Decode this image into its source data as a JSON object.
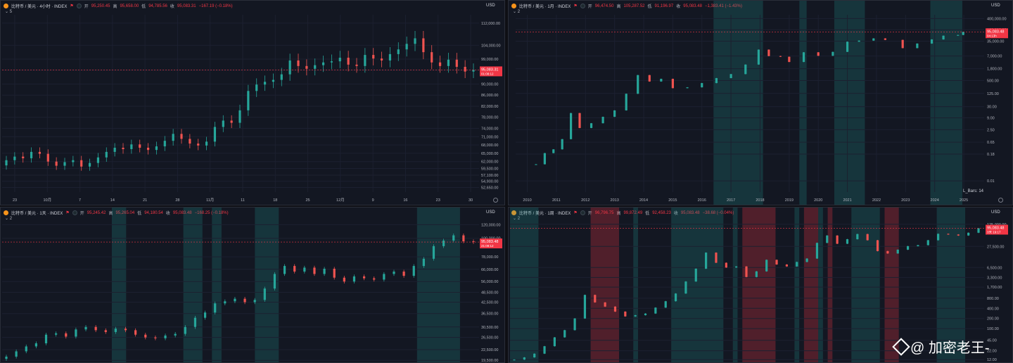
{
  "watermark": {
    "text": "@ 加密老王-"
  },
  "colors": {
    "up": "#26a69a",
    "down": "#ef5350",
    "bg": "#131722",
    "grid": "#1e222d",
    "accent": "#f23645"
  },
  "panes": [
    {
      "id": "tl",
      "title": "比特币 / 美元 · 4小时 · INDEX",
      "open_label": "开",
      "open": "95,250.45",
      "high_label": "高",
      "high": "95,658.00",
      "low_label": "低",
      "low": "94,785.56",
      "close_label": "收",
      "close": "95,083.31",
      "change": "−167.19 (−0.18%)",
      "collapse": "⌄ 5",
      "currency": "USD",
      "price_tag": "95,083.31",
      "price_tag_sub": "01:08:12",
      "chart_data": {
        "type": "candlestick",
        "scale": "linear",
        "x_ticks": [
          "23",
          "10月",
          "7",
          "14",
          "21",
          "28",
          "11月",
          "11",
          "18",
          "25",
          "12月",
          "9",
          "16",
          "23",
          "30"
        ],
        "y_ticks": [
          "112,000.00",
          "104,000.00",
          "99,000.00",
          "95,000.00",
          "90,000.00",
          "86,000.00",
          "82,000.00",
          "78,000.00",
          "74,000.00",
          "71,000.00",
          "68,000.00",
          "65,000.00",
          "62,000.00",
          "59,500.00",
          "57,100.00",
          "54,900.00",
          "52,650.00"
        ],
        "ylim": [
          51000,
          115000
        ],
        "close": [
          62500,
          63800,
          63200,
          65500,
          64800,
          62000,
          60500,
          61800,
          62500,
          60200,
          61500,
          63500,
          65500,
          67000,
          66500,
          68200,
          67000,
          66200,
          67500,
          69500,
          72000,
          70200,
          68500,
          67800,
          69200,
          74500,
          76800,
          76000,
          80500,
          87500,
          89800,
          90800,
          91500,
          93500,
          98500,
          96500,
          95500,
          96800,
          97800,
          98200,
          99500,
          97000,
          96500,
          100500,
          99200,
          98500,
          100800,
          102500,
          104500,
          106500,
          101500,
          97800,
          96500,
          98800,
          96200,
          94500,
          95083
        ]
      },
      "highlights": []
    },
    {
      "id": "tr",
      "title": "比特币 / 美元 · 1月 · INDEX",
      "open_label": "开",
      "open": "96,474.50",
      "high_label": "高",
      "high": "105,287.52",
      "low_label": "低",
      "low": "91,196.97",
      "close_label": "收",
      "close": "95,083.48",
      "change": "−1,383.41 (−1.43%)",
      "collapse": "⌄ 2",
      "currency": "USD",
      "price_tag": "95,083.48",
      "price_tag_sub": "04:13h",
      "annotation": "L_Bars: 14",
      "chart_data": {
        "type": "candlestick",
        "scale": "log",
        "x_ticks": [
          "2010",
          "2011",
          "2012",
          "2013",
          "2014",
          "2015",
          "2016",
          "2017",
          "2018",
          "2019",
          "2020",
          "2021",
          "2022",
          "2023",
          "2024",
          "2025"
        ],
        "y_ticks": [
          "400,000.00",
          "120,000.00",
          "35,000.00",
          "7,000.00",
          "1,800.00",
          "500.00",
          "125.00",
          "30.00",
          "9.00",
          "2.50",
          "0.65",
          "0.18",
          "0.01"
        ],
        "ylim": [
          0.003,
          600000
        ],
        "years": [
          2010.3,
          2010.6,
          2010.9,
          2011.2,
          2011.5,
          2011.8,
          2012.2,
          2012.6,
          2013.0,
          2013.4,
          2013.8,
          2014.2,
          2014.6,
          2015.0,
          2015.5,
          2016.0,
          2016.5,
          2017.0,
          2017.5,
          2017.95,
          2018.3,
          2018.7,
          2019.0,
          2019.5,
          2020.0,
          2020.5,
          2021.0,
          2021.4,
          2021.9,
          2022.3,
          2022.9,
          2023.4,
          2023.9,
          2024.3,
          2024.8,
          2024.98
        ],
        "close": [
          0.06,
          0.2,
          0.3,
          0.9,
          15,
          3,
          5,
          10,
          20,
          120,
          900,
          450,
          600,
          220,
          240,
          380,
          650,
          1000,
          2800,
          14000,
          7000,
          6500,
          3700,
          10500,
          7200,
          11000,
          33000,
          37000,
          47000,
          40000,
          16500,
          27000,
          42000,
          63000,
          68000,
          95083
        ]
      },
      "highlights": [
        {
          "from": 2016.4,
          "to": 2018.1,
          "color": "green"
        },
        {
          "from": 2019.35,
          "to": 2019.6,
          "color": "green"
        },
        {
          "from": 2020.55,
          "to": 2021.6,
          "color": "green"
        },
        {
          "from": 2023.85,
          "to": 2024.95,
          "color": "green"
        }
      ]
    },
    {
      "id": "bl",
      "title": "比特币 / 美元 · 1天 · INDEX",
      "open_label": "开",
      "open": "95,245.42",
      "high_label": "高",
      "high": "95,265.04",
      "low_label": "低",
      "low": "94,180.54",
      "close_label": "收",
      "close": "95,083.48",
      "change": "−168.25 (−0.18%)",
      "collapse": "⌄ 2",
      "currency": "USD",
      "price_tag": "95,083.48",
      "price_tag_sub": "21:08:12",
      "chart_data": {
        "type": "candlestick",
        "scale": "log",
        "x_ticks": [],
        "y_ticks": [
          "120,000.00",
          "100,000.00",
          "78,000.00",
          "66,000.00",
          "56,000.00",
          "48,500.00",
          "42,500.00",
          "36,500.00",
          "30,500.00",
          "26,500.00",
          "22,500.00",
          "19,500.00"
        ],
        "ylim": [
          19000,
          125000
        ],
        "close": [
          20500,
          22000,
          23500,
          24500,
          27500,
          28000,
          26800,
          29500,
          30500,
          29200,
          28500,
          29800,
          29200,
          27500,
          26500,
          26200,
          27200,
          27800,
          30500,
          34500,
          37000,
          41800,
          43000,
          44500,
          42500,
          43800,
          51000,
          62000,
          69000,
          64000,
          67500,
          62000,
          66500,
          59000,
          56000,
          60000,
          58500,
          57500,
          62000,
          64000,
          60500,
          69000,
          76000,
          90000,
          97000,
          104000,
          96000,
          95083
        ]
      },
      "highlights": [
        {
          "from": 0.23,
          "to": 0.26,
          "color": "green"
        },
        {
          "from": 0.38,
          "to": 0.42,
          "color": "green"
        },
        {
          "from": 0.44,
          "to": 0.46,
          "color": "green"
        },
        {
          "from": 0.53,
          "to": 0.58,
          "color": "green"
        },
        {
          "from": 0.87,
          "to": 0.96,
          "color": "green"
        }
      ]
    },
    {
      "id": "br",
      "title": "比特币 / 美元 · 1周 · INDEX",
      "open_label": "开",
      "open": "96,796.75",
      "high_label": "高",
      "high": "99,872.49",
      "low_label": "低",
      "low": "92,458.23",
      "close_label": "收",
      "close": "95,083.48",
      "change": "−38.68 (−0.04%)",
      "collapse": "⌄ 2",
      "currency": "USD",
      "price_tag": "95,083.48",
      "price_tag_sub": "3天 19:17",
      "chart_data": {
        "type": "candlestick",
        "scale": "log",
        "x_ticks": [],
        "y_ticks": [
          "125,000.00",
          "27,500.00",
          "6,500.00",
          "3,300.00",
          "1,700.00",
          "800.00",
          "400.00",
          "200.00",
          "100.00",
          "45.00",
          "22.00",
          "12.00"
        ],
        "ylim": [
          10,
          150000
        ],
        "close": [
          12,
          14,
          18,
          30,
          55,
          90,
          200,
          1000,
          600,
          450,
          320,
          230,
          250,
          280,
          420,
          650,
          1100,
          2500,
          6000,
          18000,
          9000,
          6500,
          7000,
          3400,
          5000,
          11000,
          8000,
          7000,
          9500,
          12000,
          35000,
          58000,
          33000,
          45000,
          64000,
          42000,
          20000,
          17000,
          22000,
          28000,
          30000,
          42000,
          65000,
          62000,
          58000,
          70000,
          95083
        ]
      },
      "highlights": [
        {
          "from": 0.0,
          "to": 0.06,
          "color": "green"
        },
        {
          "from": 0.17,
          "to": 0.23,
          "color": "red"
        },
        {
          "from": 0.26,
          "to": 0.27,
          "color": "green"
        },
        {
          "from": 0.34,
          "to": 0.45,
          "color": "green"
        },
        {
          "from": 0.47,
          "to": 0.48,
          "color": "green"
        },
        {
          "from": 0.49,
          "to": 0.56,
          "color": "red"
        },
        {
          "from": 0.6,
          "to": 0.61,
          "color": "green"
        },
        {
          "from": 0.62,
          "to": 0.65,
          "color": "red"
        },
        {
          "from": 0.65,
          "to": 0.66,
          "color": "green"
        },
        {
          "from": 0.67,
          "to": 0.68,
          "color": "red"
        },
        {
          "from": 0.72,
          "to": 0.78,
          "color": "green"
        },
        {
          "from": 0.79,
          "to": 0.82,
          "color": "red"
        },
        {
          "from": 0.9,
          "to": 0.96,
          "color": "green"
        }
      ]
    }
  ]
}
